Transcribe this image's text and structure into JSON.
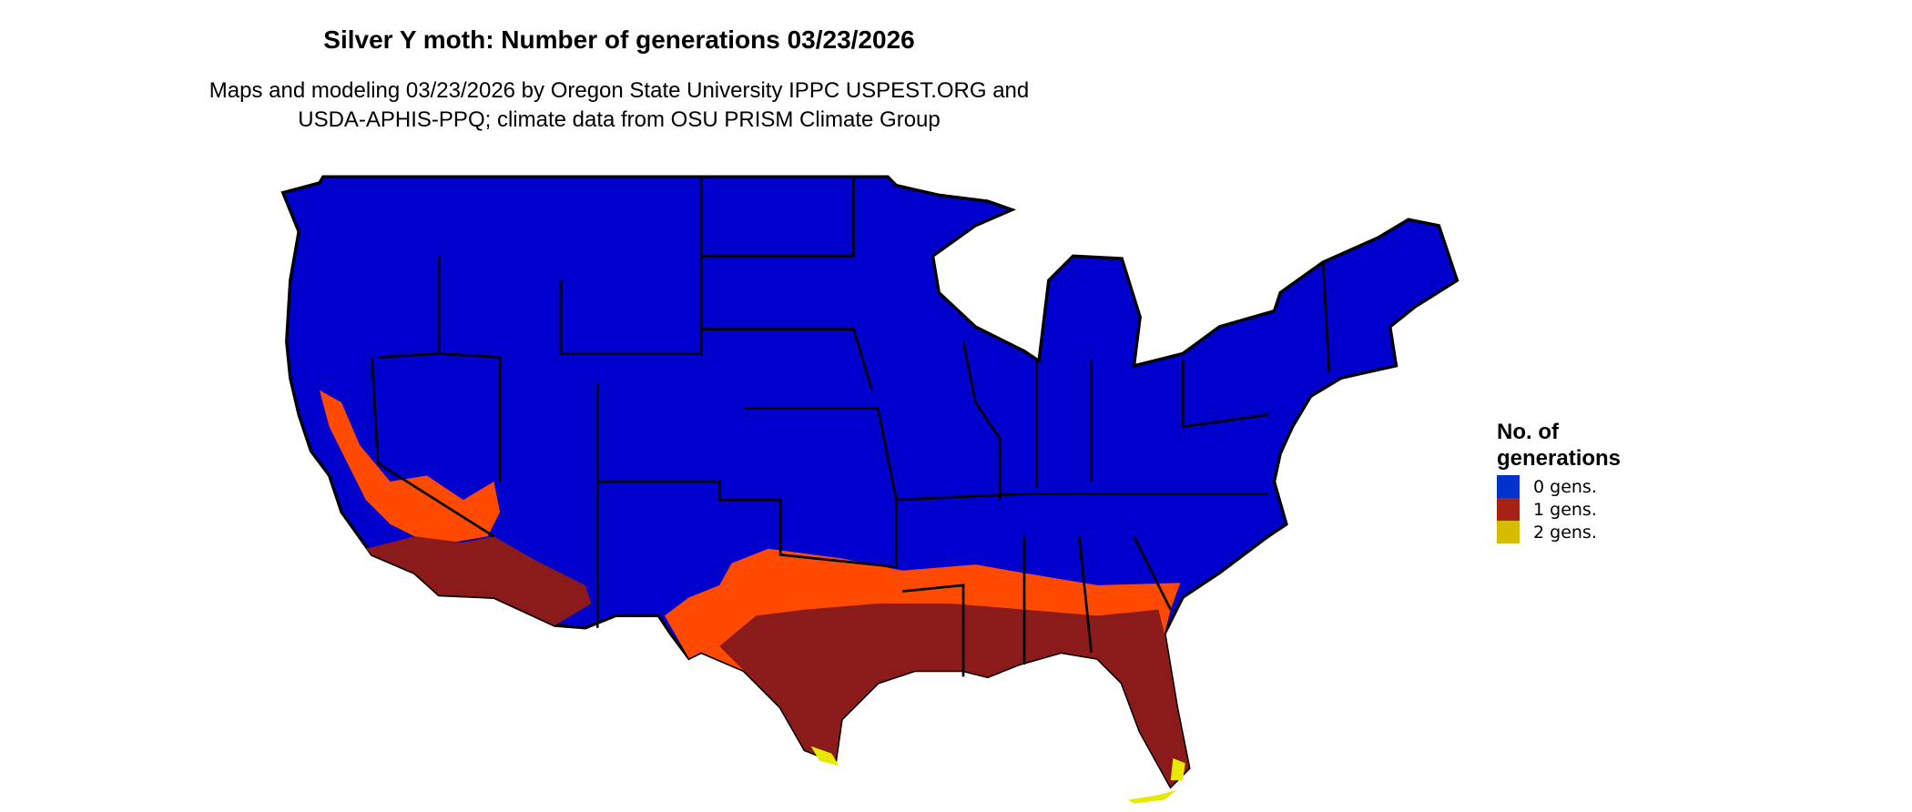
{
  "title": "Silver Y moth: Number of generations 03/23/2026",
  "subtitle_line1": "Maps and modeling 03/23/2026 by Oregon State University IPPC USPEST.ORG and",
  "subtitle_line2": "USDA-APHIS-PPQ; climate data from OSU PRISM Climate Group",
  "legend": {
    "title_line1": "No. of",
    "title_line2": "generations",
    "items": [
      {
        "label": "0 gens.",
        "color": "#0033cc"
      },
      {
        "label": "1 gens.",
        "color": "#a52214"
      },
      {
        "label": "2 gens.",
        "color": "#d4bd00"
      }
    ]
  },
  "map_colors": {
    "zero": "#0000cc",
    "one_low": "#ff4a00",
    "one_high": "#8b1a1a",
    "two": "#e8e800",
    "borders": "#000000"
  }
}
